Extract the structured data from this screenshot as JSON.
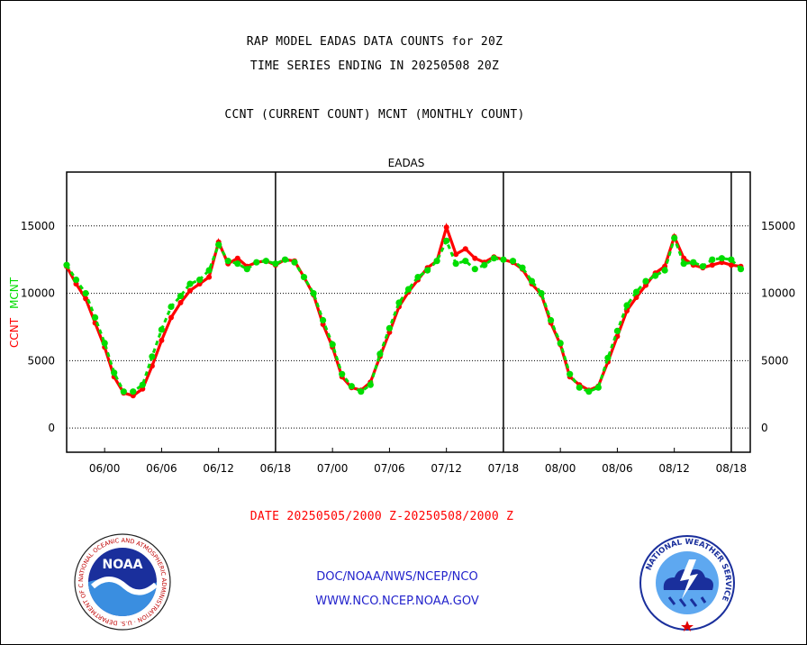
{
  "header": {
    "title_line1": "RAP MODEL EADAS DATA COUNTS for 20Z",
    "title_line2": "TIME SERIES ENDING IN 20250508 20Z",
    "subtitle": "CCNT (CURRENT COUNT) MCNT (MONTHLY COUNT)"
  },
  "footer": {
    "date_range": "DATE 20250505/2000 Z-20250508/2000 Z",
    "credit_line1": "DOC/NOAA/NWS/NCEP/NCO",
    "credit_line2": "WWW.NCO.NCEP.NOAA.GOV"
  },
  "logos": {
    "noaa": {
      "text": "NOAA",
      "ring_text": "NATIONAL OCEANIC AND ATMOSPHERIC ADMINISTRATION · U.S. DEPARTMENT OF COMMERCE"
    },
    "nws": {
      "ring_text": "NATIONAL WEATHER SERVICE"
    }
  },
  "colors": {
    "ccnt": "#ff0000",
    "mcnt": "#00dd00",
    "title": "#000000",
    "plot_title": "#2222cc",
    "date": "#ff0000",
    "credit": "#2222cc"
  },
  "chart_data": {
    "type": "line",
    "title": "EADAS",
    "ylabel_parts": [
      {
        "text": "CCNT",
        "color": "#ff0000"
      },
      {
        "text": "MCNT",
        "color": "#00dd00"
      }
    ],
    "ylim": [
      -1800,
      19000
    ],
    "yticks": [
      0,
      5000,
      10000,
      15000
    ],
    "ytick_labels": [
      "0",
      "5000",
      "10000",
      "15000"
    ],
    "grid": true,
    "x_start_hour": 20,
    "x_end_hour": 92,
    "xticks_hours": [
      24,
      30,
      36,
      42,
      48,
      54,
      60,
      66,
      72,
      78,
      84,
      90
    ],
    "xtick_labels": [
      "06/00",
      "06/06",
      "06/12",
      "06/18",
      "07/00",
      "07/06",
      "07/12",
      "07/18",
      "08/00",
      "08/06",
      "08/12",
      "08/18"
    ],
    "day_boundaries_hours": [
      42,
      66,
      90
    ],
    "series": [
      {
        "name": "CCNT",
        "color": "#ff0000",
        "dashed": false,
        "values": [
          12000,
          10700,
          9600,
          7800,
          6000,
          3800,
          2600,
          2400,
          2900,
          4600,
          6500,
          8200,
          9300,
          10200,
          10700,
          11200,
          13800,
          12200,
          12600,
          12000,
          12300,
          12400,
          12100,
          12500,
          12400,
          11200,
          9900,
          7700,
          6000,
          3800,
          3000,
          2800,
          3400,
          5300,
          7100,
          9000,
          10100,
          11000,
          11900,
          12400,
          14900,
          12900,
          13300,
          12600,
          12300,
          12700,
          12500,
          12300,
          11800,
          10700,
          9900,
          7800,
          6200,
          3800,
          3200,
          2800,
          3100,
          4900,
          6800,
          8700,
          9700,
          10600,
          11500,
          12000,
          14200,
          12600,
          12100,
          11900,
          12100,
          12300,
          12100,
          12000
        ]
      },
      {
        "name": "MCNT",
        "color": "#00dd00",
        "dashed": true,
        "values": [
          12100,
          11000,
          10000,
          8200,
          6300,
          4100,
          2700,
          2700,
          3200,
          5300,
          7300,
          9000,
          9800,
          10700,
          11000,
          11700,
          13600,
          12400,
          12200,
          11800,
          12300,
          12400,
          12200,
          12500,
          12300,
          11200,
          10000,
          8000,
          6200,
          4000,
          3100,
          2700,
          3200,
          5500,
          7400,
          9300,
          10300,
          11200,
          11700,
          12400,
          13900,
          12200,
          12400,
          11800,
          12100,
          12600,
          12500,
          12400,
          11900,
          10900,
          10000,
          8000,
          6300,
          4000,
          3000,
          2700,
          3000,
          5200,
          7200,
          9100,
          10100,
          10900,
          11300,
          11700,
          14100,
          12200,
          12300,
          12000,
          12500,
          12600,
          12500,
          11800
        ]
      }
    ]
  }
}
